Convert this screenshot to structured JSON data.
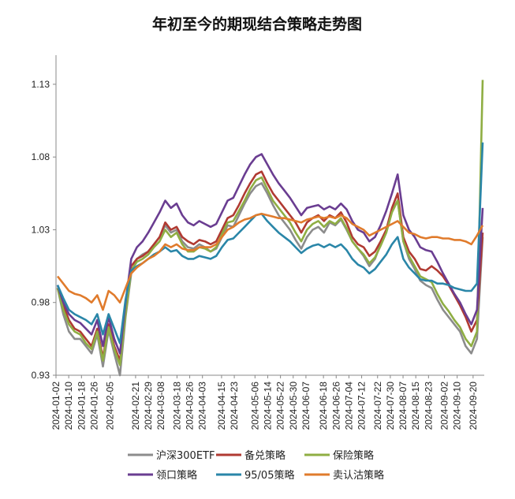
{
  "chart_data": {
    "type": "line",
    "title": "年初至今的期现结合策略走势图",
    "xlabel": "",
    "ylabel": "",
    "ylim": [
      0.93,
      1.15
    ],
    "yticks": [
      "0.93",
      "0.98",
      "1.03",
      "1.08",
      "1.13"
    ],
    "x_start": "2024-01-02",
    "x_end": "2024-09-27",
    "xticks": [
      "2024-01-02",
      "2024-01-10",
      "2024-01-18",
      "2024-01-26",
      "2024-02-05",
      "2024-02-21",
      "2024-02-29",
      "2024-03-08",
      "2024-03-18",
      "2024-03-26",
      "2024-04-03",
      "2024-04-15",
      "2024-04-23",
      "2024-05-06",
      "2024-05-14",
      "2024-05-22",
      "2024-05-30",
      "2024-06-07",
      "2024-06-18",
      "2024-06-26",
      "2024-07-04",
      "2024-07-12",
      "2024-07-22",
      "2024-07-30",
      "2024-08-07",
      "2024-08-15",
      "2024-08-23",
      "2024-09-02",
      "2024-09-10",
      "2024-09-20"
    ],
    "grid": false,
    "legend_position": "bottom",
    "series": [
      {
        "name": "沪深300ETF",
        "color": "#8c8c8c",
        "values": [
          0.99,
          0.972,
          0.96,
          0.955,
          0.955,
          0.95,
          0.945,
          0.958,
          0.936,
          0.961,
          0.945,
          0.93,
          0.97,
          1.0,
          1.01,
          1.013,
          1.015,
          1.02,
          1.025,
          1.033,
          1.028,
          1.03,
          1.022,
          1.018,
          1.017,
          1.02,
          1.018,
          1.015,
          1.017,
          1.025,
          1.033,
          1.032,
          1.04,
          1.048,
          1.055,
          1.06,
          1.062,
          1.055,
          1.047,
          1.04,
          1.035,
          1.03,
          1.023,
          1.017,
          1.025,
          1.03,
          1.032,
          1.028,
          1.035,
          1.033,
          1.037,
          1.03,
          1.022,
          1.017,
          1.012,
          1.005,
          1.01,
          1.02,
          1.03,
          1.043,
          1.05,
          1.022,
          1.01,
          1.003,
          0.995,
          0.992,
          0.99,
          0.982,
          0.975,
          0.97,
          0.965,
          0.96,
          0.95,
          0.945,
          0.955,
          1.025
        ]
      },
      {
        "name": "备兑策略",
        "color": "#b03a32",
        "values": [
          0.99,
          0.978,
          0.968,
          0.962,
          0.96,
          0.955,
          0.95,
          0.962,
          0.942,
          0.965,
          0.95,
          0.94,
          0.975,
          1.005,
          1.01,
          1.012,
          1.015,
          1.02,
          1.025,
          1.035,
          1.03,
          1.032,
          1.025,
          1.022,
          1.02,
          1.023,
          1.022,
          1.02,
          1.022,
          1.03,
          1.038,
          1.04,
          1.047,
          1.055,
          1.062,
          1.068,
          1.07,
          1.062,
          1.055,
          1.05,
          1.045,
          1.04,
          1.035,
          1.028,
          1.035,
          1.038,
          1.04,
          1.036,
          1.04,
          1.038,
          1.042,
          1.035,
          1.025,
          1.02,
          1.018,
          1.012,
          1.015,
          1.022,
          1.03,
          1.045,
          1.055,
          1.025,
          1.015,
          1.01,
          1.003,
          1.002,
          1.005,
          1.002,
          0.998,
          0.992,
          0.985,
          0.978,
          0.97,
          0.96,
          0.968,
          1.028
        ]
      },
      {
        "name": "保险策略",
        "color": "#8fae43",
        "values": [
          0.99,
          0.975,
          0.965,
          0.96,
          0.958,
          0.952,
          0.948,
          0.96,
          0.94,
          0.963,
          0.948,
          0.937,
          0.972,
          1.002,
          1.008,
          1.01,
          1.013,
          1.018,
          1.022,
          1.03,
          1.025,
          1.028,
          1.02,
          1.015,
          1.015,
          1.018,
          1.017,
          1.015,
          1.018,
          1.027,
          1.035,
          1.036,
          1.043,
          1.05,
          1.058,
          1.064,
          1.066,
          1.058,
          1.05,
          1.045,
          1.04,
          1.035,
          1.028,
          1.022,
          1.03,
          1.034,
          1.036,
          1.032,
          1.036,
          1.034,
          1.038,
          1.031,
          1.022,
          1.017,
          1.013,
          1.007,
          1.011,
          1.019,
          1.028,
          1.042,
          1.05,
          1.022,
          1.012,
          1.005,
          0.998,
          0.996,
          0.994,
          0.986,
          0.979,
          0.974,
          0.968,
          0.963,
          0.955,
          0.95,
          0.96,
          1.133
        ]
      },
      {
        "name": "领口策略",
        "color": "#6a3d91",
        "values": [
          0.992,
          0.98,
          0.972,
          0.968,
          0.966,
          0.962,
          0.958,
          0.968,
          0.95,
          0.97,
          0.955,
          0.945,
          0.98,
          1.01,
          1.018,
          1.022,
          1.028,
          1.035,
          1.042,
          1.05,
          1.045,
          1.048,
          1.04,
          1.035,
          1.033,
          1.036,
          1.034,
          1.032,
          1.034,
          1.042,
          1.05,
          1.052,
          1.06,
          1.068,
          1.075,
          1.08,
          1.082,
          1.075,
          1.068,
          1.062,
          1.057,
          1.052,
          1.046,
          1.04,
          1.045,
          1.046,
          1.047,
          1.044,
          1.046,
          1.044,
          1.048,
          1.044,
          1.036,
          1.03,
          1.028,
          1.022,
          1.025,
          1.033,
          1.043,
          1.055,
          1.068,
          1.04,
          1.03,
          1.025,
          1.018,
          1.016,
          1.015,
          1.008,
          1.0,
          0.993,
          0.986,
          0.98,
          0.972,
          0.965,
          0.975,
          1.045
        ]
      },
      {
        "name": "95/05策略",
        "color": "#2a86a8",
        "values": [
          0.992,
          0.983,
          0.975,
          0.972,
          0.97,
          0.968,
          0.965,
          0.972,
          0.958,
          0.972,
          0.962,
          0.952,
          0.982,
          1.002,
          1.005,
          1.007,
          1.01,
          1.013,
          1.015,
          1.018,
          1.015,
          1.016,
          1.012,
          1.01,
          1.01,
          1.012,
          1.011,
          1.01,
          1.012,
          1.018,
          1.023,
          1.024,
          1.028,
          1.032,
          1.036,
          1.04,
          1.041,
          1.036,
          1.032,
          1.028,
          1.025,
          1.022,
          1.018,
          1.014,
          1.017,
          1.019,
          1.02,
          1.018,
          1.02,
          1.018,
          1.02,
          1.016,
          1.01,
          1.006,
          1.004,
          1.0,
          1.003,
          1.008,
          1.013,
          1.02,
          1.025,
          1.01,
          1.004,
          1.0,
          0.996,
          0.995,
          0.995,
          0.993,
          0.993,
          0.992,
          0.99,
          0.989,
          0.988,
          0.988,
          0.993,
          1.09
        ]
      },
      {
        "name": "卖认沽策略",
        "color": "#e07b2c",
        "values": [
          0.998,
          0.993,
          0.988,
          0.986,
          0.985,
          0.983,
          0.98,
          0.985,
          0.975,
          0.988,
          0.985,
          0.98,
          0.99,
          1.0,
          1.004,
          1.007,
          1.01,
          1.012,
          1.015,
          1.02,
          1.018,
          1.02,
          1.017,
          1.016,
          1.016,
          1.018,
          1.018,
          1.018,
          1.02,
          1.025,
          1.03,
          1.032,
          1.035,
          1.037,
          1.038,
          1.04,
          1.041,
          1.04,
          1.039,
          1.038,
          1.038,
          1.037,
          1.036,
          1.035,
          1.037,
          1.038,
          1.039,
          1.038,
          1.039,
          1.038,
          1.04,
          1.038,
          1.034,
          1.032,
          1.03,
          1.026,
          1.028,
          1.03,
          1.032,
          1.034,
          1.036,
          1.032,
          1.028,
          1.027,
          1.025,
          1.024,
          1.025,
          1.025,
          1.024,
          1.024,
          1.023,
          1.023,
          1.022,
          1.02,
          1.026,
          1.033
        ]
      }
    ]
  }
}
